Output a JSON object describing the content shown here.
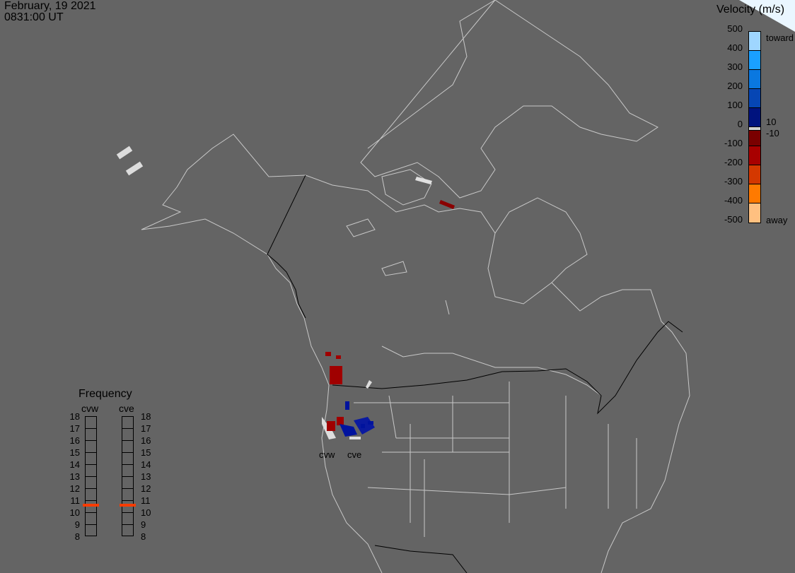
{
  "header": {
    "date": "February, 19 2021",
    "time": "0831:00 UT"
  },
  "velocity_legend": {
    "title": "Velocity (m/s)",
    "ticks": [
      "500",
      "400",
      "300",
      "200",
      "100",
      "0",
      "-100",
      "-200",
      "-300",
      "-400",
      "-500"
    ],
    "toward_label": "toward",
    "away_label": "away",
    "threshold_pos": "10",
    "threshold_neg": "-10",
    "colors_top_to_bottom": [
      "#9fd6ff",
      "#1aa0ff",
      "#0a78e0",
      "#0646b4",
      "#00137e",
      "#d0d0d0",
      "#7a0000",
      "#a80000",
      "#d43800",
      "#ff7a00",
      "#ffc080"
    ]
  },
  "frequency_panel": {
    "title": "Frequency",
    "ticks": [
      "18",
      "17",
      "16",
      "15",
      "14",
      "13",
      "12",
      "11",
      "10",
      "9",
      "8"
    ],
    "radars": [
      {
        "name": "cvw",
        "frequency_mhz": 10.6
      },
      {
        "name": "cve",
        "frequency_mhz": 10.6
      }
    ],
    "marker_color": "#ff3c00"
  },
  "radar_labels": [
    "cvw",
    "cve"
  ]
}
